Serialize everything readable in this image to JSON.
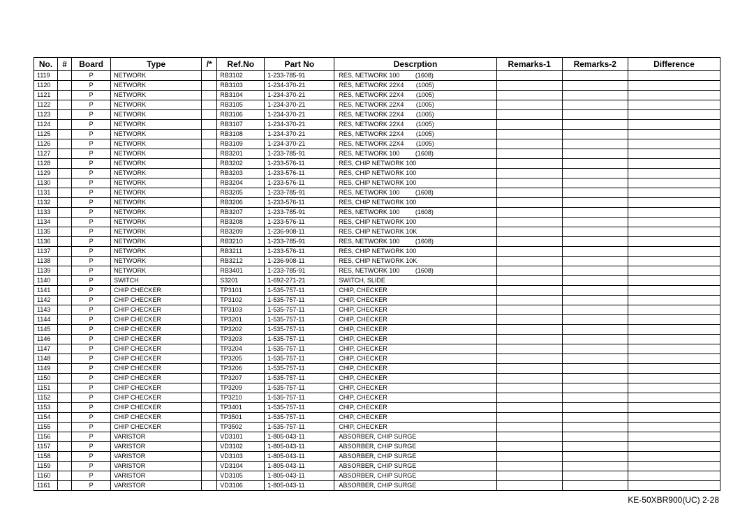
{
  "table": {
    "columns": [
      "No.",
      "#",
      "Board",
      "Type",
      "/*",
      "Ref.No",
      "Part No",
      "Descrption",
      "Remarks-1",
      "Remarks-2",
      "Difference"
    ],
    "rows": [
      [
        "1119",
        "",
        "P",
        "NETWORK",
        "",
        "RB3102",
        "1-233-785-91",
        "RES, NETWORK 100         (1608)",
        "",
        "",
        ""
      ],
      [
        "1120",
        "",
        "P",
        "NETWORK",
        "",
        "RB3103",
        "1-234-370-21",
        "RES, NETWORK 22X4       (1005)",
        "",
        "",
        ""
      ],
      [
        "1121",
        "",
        "P",
        "NETWORK",
        "",
        "RB3104",
        "1-234-370-21",
        "RES, NETWORK 22X4       (1005)",
        "",
        "",
        ""
      ],
      [
        "1122",
        "",
        "P",
        "NETWORK",
        "",
        "RB3105",
        "1-234-370-21",
        "RES, NETWORK 22X4       (1005)",
        "",
        "",
        ""
      ],
      [
        "1123",
        "",
        "P",
        "NETWORK",
        "",
        "RB3106",
        "1-234-370-21",
        "RES, NETWORK 22X4       (1005)",
        "",
        "",
        ""
      ],
      [
        "1124",
        "",
        "P",
        "NETWORK",
        "",
        "RB3107",
        "1-234-370-21",
        "RES, NETWORK 22X4       (1005)",
        "",
        "",
        ""
      ],
      [
        "1125",
        "",
        "P",
        "NETWORK",
        "",
        "RB3108",
        "1-234-370-21",
        "RES, NETWORK 22X4       (1005)",
        "",
        "",
        ""
      ],
      [
        "1126",
        "",
        "P",
        "NETWORK",
        "",
        "RB3109",
        "1-234-370-21",
        "RES, NETWORK 22X4       (1005)",
        "",
        "",
        ""
      ],
      [
        "1127",
        "",
        "P",
        "NETWORK",
        "",
        "RB3201",
        "1-233-785-91",
        "RES, NETWORK 100         (1608)",
        "",
        "",
        ""
      ],
      [
        "1128",
        "",
        "P",
        "NETWORK",
        "",
        "RB3202",
        "1-233-576-11",
        "RES, CHIP NETWORK 100",
        "",
        "",
        ""
      ],
      [
        "1129",
        "",
        "P",
        "NETWORK",
        "",
        "RB3203",
        "1-233-576-11",
        "RES, CHIP NETWORK 100",
        "",
        "",
        ""
      ],
      [
        "1130",
        "",
        "P",
        "NETWORK",
        "",
        "RB3204",
        "1-233-576-11",
        "RES, CHIP NETWORK 100",
        "",
        "",
        ""
      ],
      [
        "1131",
        "",
        "P",
        "NETWORK",
        "",
        "RB3205",
        "1-233-785-91",
        "RES, NETWORK 100         (1608)",
        "",
        "",
        ""
      ],
      [
        "1132",
        "",
        "P",
        "NETWORK",
        "",
        "RB3206",
        "1-233-576-11",
        "RES, CHIP NETWORK 100",
        "",
        "",
        ""
      ],
      [
        "1133",
        "",
        "P",
        "NETWORK",
        "",
        "RB3207",
        "1-233-785-91",
        "RES, NETWORK 100         (1608)",
        "",
        "",
        ""
      ],
      [
        "1134",
        "",
        "P",
        "NETWORK",
        "",
        "RB3208",
        "1-233-576-11",
        "RES, CHIP NETWORK 100",
        "",
        "",
        ""
      ],
      [
        "1135",
        "",
        "P",
        "NETWORK",
        "",
        "RB3209",
        "1-236-908-11",
        "RES, CHIP NETWORK 10K",
        "",
        "",
        ""
      ],
      [
        "1136",
        "",
        "P",
        "NETWORK",
        "",
        "RB3210",
        "1-233-785-91",
        "RES, NETWORK 100         (1608)",
        "",
        "",
        ""
      ],
      [
        "1137",
        "",
        "P",
        "NETWORK",
        "",
        "RB3211",
        "1-233-576-11",
        "RES, CHIP NETWORK 100",
        "",
        "",
        ""
      ],
      [
        "1138",
        "",
        "P",
        "NETWORK",
        "",
        "RB3212",
        "1-236-908-11",
        "RES, CHIP NETWORK 10K",
        "",
        "",
        ""
      ],
      [
        "1139",
        "",
        "P",
        "NETWORK",
        "",
        "RB3401",
        "1-233-785-91",
        "RES, NETWORK 100         (1608)",
        "",
        "",
        ""
      ],
      [
        "1140",
        "",
        "P",
        "SWITCH",
        "",
        "S3201",
        "1-692-271-21",
        "SWITCH, SLIDE",
        "",
        "",
        ""
      ],
      [
        "1141",
        "",
        "P",
        "CHIP CHECKER",
        "",
        "TP3101",
        "1-535-757-11",
        "CHIP, CHECKER",
        "",
        "",
        ""
      ],
      [
        "1142",
        "",
        "P",
        "CHIP CHECKER",
        "",
        "TP3102",
        "1-535-757-11",
        "CHIP, CHECKER",
        "",
        "",
        ""
      ],
      [
        "1143",
        "",
        "P",
        "CHIP CHECKER",
        "",
        "TP3103",
        "1-535-757-11",
        "CHIP, CHECKER",
        "",
        "",
        ""
      ],
      [
        "1144",
        "",
        "P",
        "CHIP CHECKER",
        "",
        "TP3201",
        "1-535-757-11",
        "CHIP, CHECKER",
        "",
        "",
        ""
      ],
      [
        "1145",
        "",
        "P",
        "CHIP CHECKER",
        "",
        "TP3202",
        "1-535-757-11",
        "CHIP, CHECKER",
        "",
        "",
        ""
      ],
      [
        "1146",
        "",
        "P",
        "CHIP CHECKER",
        "",
        "TP3203",
        "1-535-757-11",
        "CHIP, CHECKER",
        "",
        "",
        ""
      ],
      [
        "1147",
        "",
        "P",
        "CHIP CHECKER",
        "",
        "TP3204",
        "1-535-757-11",
        "CHIP, CHECKER",
        "",
        "",
        ""
      ],
      [
        "1148",
        "",
        "P",
        "CHIP CHECKER",
        "",
        "TP3205",
        "1-535-757-11",
        "CHIP, CHECKER",
        "",
        "",
        ""
      ],
      [
        "1149",
        "",
        "P",
        "CHIP CHECKER",
        "",
        "TP3206",
        "1-535-757-11",
        "CHIP, CHECKER",
        "",
        "",
        ""
      ],
      [
        "1150",
        "",
        "P",
        "CHIP CHECKER",
        "",
        "TP3207",
        "1-535-757-11",
        "CHIP, CHECKER",
        "",
        "",
        ""
      ],
      [
        "1151",
        "",
        "P",
        "CHIP CHECKER",
        "",
        "TP3209",
        "1-535-757-11",
        "CHIP, CHECKER",
        "",
        "",
        ""
      ],
      [
        "1152",
        "",
        "P",
        "CHIP CHECKER",
        "",
        "TP3210",
        "1-535-757-11",
        "CHIP, CHECKER",
        "",
        "",
        ""
      ],
      [
        "1153",
        "",
        "P",
        "CHIP CHECKER",
        "",
        "TP3401",
        "1-535-757-11",
        "CHIP, CHECKER",
        "",
        "",
        ""
      ],
      [
        "1154",
        "",
        "P",
        "CHIP CHECKER",
        "",
        "TP3501",
        "1-535-757-11",
        "CHIP, CHECKER",
        "",
        "",
        ""
      ],
      [
        "1155",
        "",
        "P",
        "CHIP CHECKER",
        "",
        "TP3502",
        "1-535-757-11",
        "CHIP, CHECKER",
        "",
        "",
        ""
      ],
      [
        "1156",
        "",
        "P",
        "VARISTOR",
        "",
        "VD3101",
        "1-805-043-11",
        "ABSORBER, CHIP SURGE",
        "",
        "",
        ""
      ],
      [
        "1157",
        "",
        "P",
        "VARISTOR",
        "",
        "VD3102",
        "1-805-043-11",
        "ABSORBER, CHIP SURGE",
        "",
        "",
        ""
      ],
      [
        "1158",
        "",
        "P",
        "VARISTOR",
        "",
        "VD3103",
        "1-805-043-11",
        "ABSORBER, CHIP SURGE",
        "",
        "",
        ""
      ],
      [
        "1159",
        "",
        "P",
        "VARISTOR",
        "",
        "VD3104",
        "1-805-043-11",
        "ABSORBER, CHIP SURGE",
        "",
        "",
        ""
      ],
      [
        "1160",
        "",
        "P",
        "VARISTOR",
        "",
        "VD3105",
        "1-805-043-11",
        "ABSORBER, CHIP SURGE",
        "",
        "",
        ""
      ],
      [
        "1161",
        "",
        "P",
        "VARISTOR",
        "",
        "VD3106",
        "1-805-043-11",
        "ABSORBER, CHIP SURGE",
        "",
        "",
        ""
      ]
    ]
  },
  "footer": "KE-50XBR900(UC)    2-28",
  "style": {
    "header_fontsize": 12,
    "cell_fontsize": 9,
    "border_color": "#000000",
    "background": "#ffffff",
    "font_family": "Arial"
  }
}
